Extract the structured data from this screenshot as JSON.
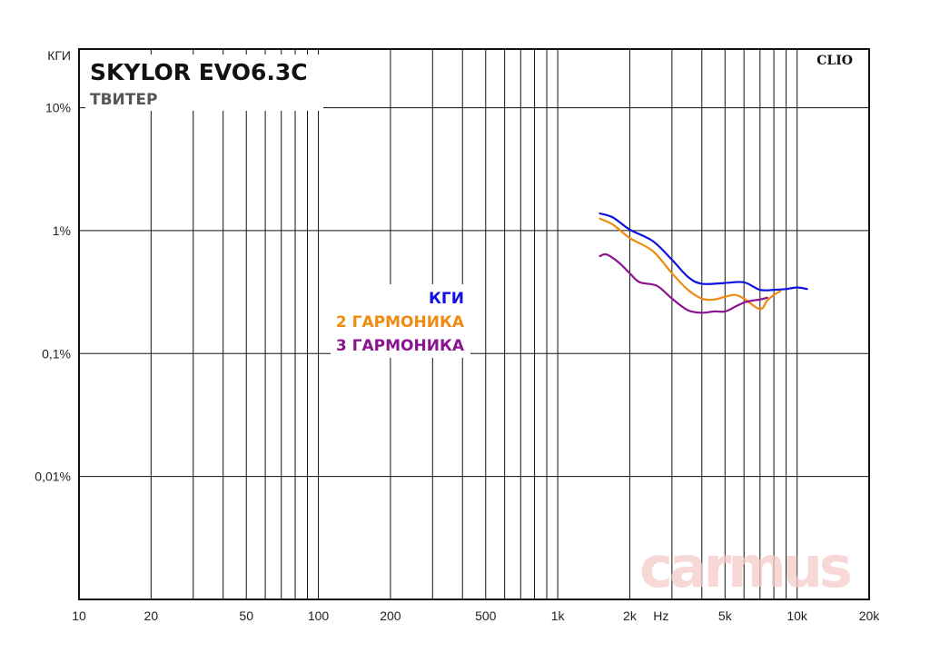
{
  "chart_data": {
    "type": "line",
    "title": "SKYLOR EVO6.3C",
    "subtitle": "ТВИТЕР",
    "brand": "CLIO",
    "watermark": "carmus",
    "x_unit_label": "Hz",
    "x_scale": "log",
    "y_scale": "log",
    "xlim": [
      10,
      20000
    ],
    "ylim": [
      0.001,
      30
    ],
    "x_ticks": [
      {
        "value": 10,
        "label": "10"
      },
      {
        "value": 20,
        "label": "20"
      },
      {
        "value": 50,
        "label": "50"
      },
      {
        "value": 100,
        "label": "100"
      },
      {
        "value": 200,
        "label": "200"
      },
      {
        "value": 500,
        "label": "500"
      },
      {
        "value": 1000,
        "label": "1k"
      },
      {
        "value": 2000,
        "label": "2k"
      },
      {
        "value": 5000,
        "label": "5k"
      },
      {
        "value": 10000,
        "label": "10k"
      },
      {
        "value": 20000,
        "label": "20k"
      }
    ],
    "y_ticks": [
      {
        "value": 10,
        "label": "10%"
      },
      {
        "value": 1,
        "label": "1%"
      },
      {
        "value": 0.1,
        "label": "0,1%"
      },
      {
        "value": 0.01,
        "label": "0,01%"
      }
    ],
    "y_top_label": "КГИ",
    "grid": true,
    "legend_position": "center-left",
    "series": [
      {
        "name": "КГИ",
        "color": "#1010e0",
        "points": [
          [
            1500,
            1.38
          ],
          [
            1700,
            1.28
          ],
          [
            2000,
            1.02
          ],
          [
            2500,
            0.82
          ],
          [
            3000,
            0.58
          ],
          [
            3500,
            0.42
          ],
          [
            4000,
            0.37
          ],
          [
            5000,
            0.375
          ],
          [
            6000,
            0.38
          ],
          [
            7000,
            0.33
          ],
          [
            8000,
            0.33
          ],
          [
            9000,
            0.335
          ],
          [
            10000,
            0.345
          ],
          [
            11000,
            0.335
          ]
        ]
      },
      {
        "name": "2 ГАРМОНИКА",
        "color": "#f08a10",
        "points": [
          [
            1500,
            1.25
          ],
          [
            1700,
            1.12
          ],
          [
            2000,
            0.87
          ],
          [
            2500,
            0.68
          ],
          [
            3000,
            0.45
          ],
          [
            3500,
            0.33
          ],
          [
            4000,
            0.28
          ],
          [
            4500,
            0.275
          ],
          [
            5000,
            0.29
          ],
          [
            5500,
            0.3
          ],
          [
            6000,
            0.28
          ],
          [
            7000,
            0.23
          ],
          [
            7500,
            0.27
          ],
          [
            8000,
            0.3
          ],
          [
            8500,
            0.32
          ]
        ]
      },
      {
        "name": "3 ГАРМОНИКА",
        "color": "#8a1490",
        "points": [
          [
            1500,
            0.62
          ],
          [
            1600,
            0.64
          ],
          [
            1800,
            0.55
          ],
          [
            2000,
            0.45
          ],
          [
            2200,
            0.38
          ],
          [
            2600,
            0.355
          ],
          [
            3000,
            0.28
          ],
          [
            3500,
            0.225
          ],
          [
            4000,
            0.215
          ],
          [
            4500,
            0.22
          ],
          [
            5000,
            0.22
          ],
          [
            5500,
            0.24
          ],
          [
            6000,
            0.26
          ],
          [
            6500,
            0.27
          ],
          [
            7000,
            0.275
          ],
          [
            7500,
            0.285
          ]
        ]
      }
    ]
  }
}
